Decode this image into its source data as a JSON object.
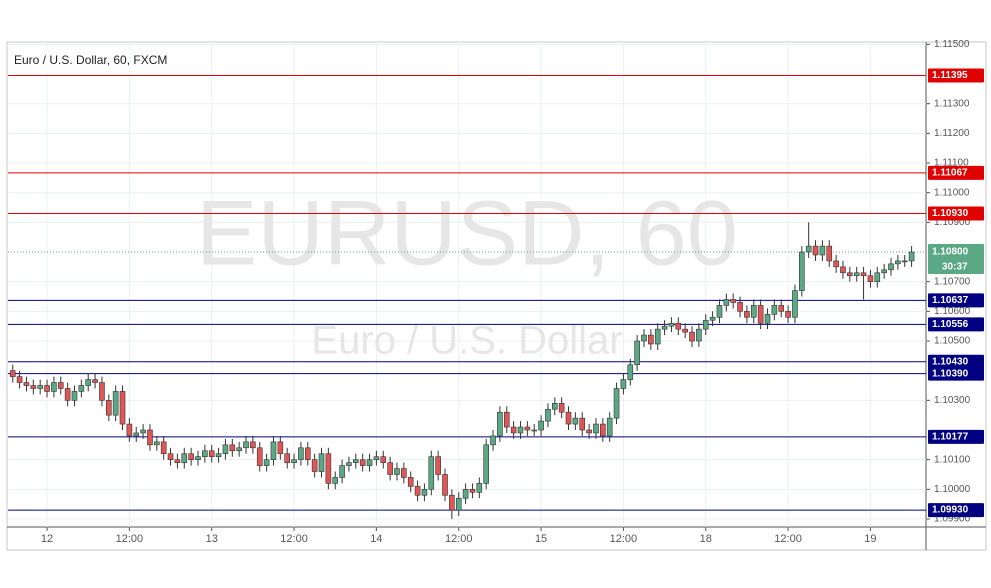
{
  "chart_data": {
    "type": "candlestick",
    "title": "Euro / U.S. Dollar, 60, FXCM",
    "watermark": "EURUSD, 60",
    "watermark_subtitle": "Euro / U.S. Dollar",
    "x": [
      -5,
      -4,
      -3,
      -2,
      -1,
      0,
      1,
      2,
      3,
      4,
      5,
      6,
      7,
      8,
      9,
      10,
      11,
      12,
      13,
      14,
      15,
      16,
      17,
      18,
      19,
      20,
      21,
      22,
      23,
      24,
      25,
      26,
      27,
      28,
      29,
      30,
      31,
      32,
      33,
      34,
      35,
      36,
      37,
      38,
      39,
      40,
      41,
      42,
      43,
      44,
      45,
      46,
      47,
      48,
      49,
      50,
      51,
      52,
      53,
      54,
      55,
      56,
      57,
      58,
      59,
      60,
      61,
      62,
      63,
      64,
      65,
      66,
      67,
      68,
      69,
      70,
      71,
      72,
      73,
      74,
      75,
      76,
      77,
      78,
      79,
      80,
      81,
      82,
      83,
      84,
      85,
      86,
      87,
      88,
      89,
      90,
      91,
      92,
      93,
      94,
      95,
      96,
      97,
      98,
      99,
      100,
      101,
      102,
      103,
      104,
      105,
      106,
      107,
      108,
      109,
      110,
      111,
      112,
      113,
      114,
      115,
      116,
      117,
      118,
      119,
      120,
      121,
      122,
      123,
      124,
      125,
      126
    ],
    "open": [
      1.104,
      1.1038,
      1.1036,
      1.1035,
      1.1034,
      1.1035,
      1.1033,
      1.1036,
      1.1034,
      1.103,
      1.1033,
      1.1035,
      1.1037,
      1.1036,
      1.103,
      1.1025,
      1.1033,
      1.1022,
      1.1018,
      1.1019,
      1.102,
      1.1015,
      1.1016,
      1.1012,
      1.101,
      1.1009,
      1.1012,
      1.101,
      1.1011,
      1.1013,
      1.1011,
      1.1012,
      1.1015,
      1.1013,
      1.1014,
      1.1016,
      1.1014,
      1.1008,
      1.101,
      1.1016,
      1.1012,
      1.1009,
      1.101,
      1.1014,
      1.101,
      1.1006,
      1.1012,
      1.1002,
      1.1004,
      1.1008,
      1.1009,
      1.101,
      1.1008,
      1.101,
      1.1011,
      1.1009,
      1.1005,
      1.1007,
      1.1004,
      1.1001,
      1.0998,
      1.1,
      1.1011,
      1.1005,
      1.0998,
      1.0993,
      1.0997,
      1.1,
      1.0999,
      1.1002,
      1.1015,
      1.1018,
      1.1026,
      1.1021,
      1.1019,
      1.1021,
      1.102,
      1.102,
      1.1023,
      1.1027,
      1.1029,
      1.1026,
      1.1022,
      1.1024,
      1.102,
      1.1019,
      1.1022,
      1.1018,
      1.1024,
      1.1034,
      1.1037,
      1.1042,
      1.105,
      1.1052,
      1.1049,
      1.1054,
      1.1055,
      1.1056,
      1.1054,
      1.1053,
      1.105,
      1.1054,
      1.1057,
      1.1058,
      1.1062,
      1.1064,
      1.1063,
      1.106,
      1.1058,
      1.1062,
      1.1056,
      1.1059,
      1.1062,
      1.106,
      1.1058,
      1.1067,
      1.108,
      1.1082,
      1.1079,
      1.1082,
      1.1077,
      1.1075,
      1.1073,
      1.1072,
      1.1073,
      1.1072,
      1.107,
      1.1073,
      1.1074,
      1.1076,
      1.1077,
      1.1077
    ],
    "high": [
      1.1042,
      1.104,
      1.1038,
      1.1037,
      1.1037,
      1.1037,
      1.1038,
      1.1038,
      1.1036,
      1.1035,
      1.1037,
      1.1039,
      1.1039,
      1.1038,
      1.1032,
      1.1035,
      1.1035,
      1.1024,
      1.1021,
      1.1022,
      1.1022,
      1.1018,
      1.1018,
      1.1014,
      1.1012,
      1.1014,
      1.1014,
      1.1013,
      1.1015,
      1.1015,
      1.1014,
      1.1017,
      1.1017,
      1.1016,
      1.1018,
      1.1018,
      1.1016,
      1.1012,
      1.1018,
      1.1018,
      1.1014,
      1.1012,
      1.1016,
      1.1016,
      1.1012,
      1.1014,
      1.1014,
      1.1006,
      1.101,
      1.1011,
      1.1012,
      1.1012,
      1.1012,
      1.1013,
      1.1013,
      1.1011,
      1.1009,
      1.1009,
      1.1006,
      1.1003,
      1.1002,
      1.1013,
      1.1013,
      1.1007,
      1.1,
      1.0999,
      1.1002,
      1.1002,
      1.1004,
      1.1017,
      1.102,
      1.1028,
      1.1028,
      1.1023,
      1.1023,
      1.1023,
      1.1022,
      1.1025,
      1.1029,
      1.1031,
      1.1031,
      1.1028,
      1.1026,
      1.1026,
      1.1022,
      1.1024,
      1.1024,
      1.1026,
      1.1036,
      1.1039,
      1.1044,
      1.1052,
      1.1054,
      1.1054,
      1.1056,
      1.1057,
      1.1058,
      1.1058,
      1.1056,
      1.1055,
      1.1056,
      1.1059,
      1.106,
      1.1064,
      1.1066,
      1.1066,
      1.1065,
      1.1062,
      1.1064,
      1.1064,
      1.1061,
      1.1064,
      1.1064,
      1.1062,
      1.1069,
      1.1082,
      1.109,
      1.1084,
      1.1084,
      1.1084,
      1.1079,
      1.1077,
      1.1075,
      1.1075,
      1.1075,
      1.1074,
      1.1075,
      1.1076,
      1.1078,
      1.1079,
      1.1079,
      1.1082
    ],
    "low": [
      1.1036,
      1.1034,
      1.1033,
      1.1032,
      1.1032,
      1.1031,
      1.1031,
      1.1032,
      1.1028,
      1.1028,
      1.1031,
      1.1033,
      1.1034,
      1.1028,
      1.1023,
      1.1023,
      1.102,
      1.1016,
      1.1016,
      1.1017,
      1.1013,
      1.1013,
      1.101,
      1.1008,
      1.1007,
      1.1007,
      1.1008,
      1.1008,
      1.1009,
      1.1009,
      1.1009,
      1.101,
      1.1011,
      1.1011,
      1.1012,
      1.1012,
      1.1006,
      1.1006,
      1.1008,
      1.101,
      1.1007,
      1.1007,
      1.1008,
      1.1008,
      1.1004,
      1.1004,
      1.1,
      1.1,
      1.1002,
      1.1006,
      1.1007,
      1.1006,
      1.1006,
      1.1008,
      1.1007,
      1.1003,
      1.1003,
      1.1002,
      1.0999,
      1.0996,
      1.0996,
      1.0998,
      1.1003,
      1.0996,
      1.099,
      1.0991,
      1.0995,
      1.0997,
      1.0997,
      1.1,
      1.1013,
      1.1016,
      1.1019,
      1.1017,
      1.1017,
      1.1018,
      1.1018,
      1.1018,
      1.1021,
      1.1025,
      1.1024,
      1.102,
      1.102,
      1.1018,
      1.1017,
      1.1017,
      1.1016,
      1.1016,
      1.1022,
      1.1032,
      1.1035,
      1.104,
      1.1048,
      1.1047,
      1.1047,
      1.1052,
      1.1053,
      1.1052,
      1.1051,
      1.1048,
      1.1048,
      1.1052,
      1.1055,
      1.1056,
      1.106,
      1.1061,
      1.1058,
      1.1056,
      1.1056,
      1.1054,
      1.1054,
      1.1057,
      1.1058,
      1.1056,
      1.1056,
      1.1065,
      1.1078,
      1.1077,
      1.1077,
      1.1075,
      1.1073,
      1.1071,
      1.107,
      1.107,
      1.1064,
      1.1068,
      1.1068,
      1.1071,
      1.1072,
      1.1074,
      1.1075,
      1.1075
    ],
    "close": [
      1.1038,
      1.1036,
      1.1035,
      1.1034,
      1.1035,
      1.1033,
      1.1036,
      1.1034,
      1.103,
      1.1033,
      1.1035,
      1.1037,
      1.1036,
      1.103,
      1.1025,
      1.1033,
      1.1022,
      1.1018,
      1.1019,
      1.102,
      1.1015,
      1.1016,
      1.1012,
      1.101,
      1.1009,
      1.1012,
      1.101,
      1.1011,
      1.1013,
      1.1011,
      1.1012,
      1.1015,
      1.1013,
      1.1014,
      1.1016,
      1.1014,
      1.1008,
      1.101,
      1.1016,
      1.1012,
      1.1009,
      1.101,
      1.1014,
      1.101,
      1.1006,
      1.1012,
      1.1002,
      1.1004,
      1.1008,
      1.1009,
      1.101,
      1.1008,
      1.101,
      1.1011,
      1.1009,
      1.1005,
      1.1007,
      1.1004,
      1.1001,
      1.0998,
      1.1,
      1.1011,
      1.1005,
      1.0998,
      1.0993,
      1.0997,
      1.1,
      1.0999,
      1.1002,
      1.1015,
      1.1018,
      1.1026,
      1.1021,
      1.1019,
      1.1021,
      1.102,
      1.102,
      1.1023,
      1.1027,
      1.1029,
      1.1026,
      1.1022,
      1.1024,
      1.102,
      1.1019,
      1.1022,
      1.1018,
      1.1024,
      1.1034,
      1.1037,
      1.1042,
      1.105,
      1.1052,
      1.1049,
      1.1054,
      1.1055,
      1.1056,
      1.1054,
      1.1053,
      1.105,
      1.1054,
      1.1057,
      1.1058,
      1.1062,
      1.1064,
      1.1063,
      1.106,
      1.1058,
      1.1062,
      1.1056,
      1.1059,
      1.1062,
      1.106,
      1.1058,
      1.1067,
      1.108,
      1.1082,
      1.1079,
      1.1082,
      1.1077,
      1.1075,
      1.1073,
      1.1072,
      1.1073,
      1.1072,
      1.107,
      1.1073,
      1.1074,
      1.1076,
      1.1077,
      1.1077,
      1.108
    ],
    "up_color": "#5aa884",
    "down_color": "#e05656",
    "xlim": [
      -5.69,
      128.1
    ],
    "ylim": [
      1.09873,
      1.11508
    ],
    "xticks": [
      {
        "value": 0,
        "label": "12"
      },
      {
        "value": 12,
        "label": "12:00"
      },
      {
        "value": 24,
        "label": "13"
      },
      {
        "value": 36,
        "label": "12:00"
      },
      {
        "value": 48,
        "label": "14"
      },
      {
        "value": 60,
        "label": "12:00"
      },
      {
        "value": 72,
        "label": "15"
      },
      {
        "value": 84,
        "label": "12:00"
      },
      {
        "value": 96,
        "label": "18"
      },
      {
        "value": 108,
        "label": "12:00"
      },
      {
        "value": 120,
        "label": "19"
      }
    ],
    "yticks": [
      {
        "value": 1.115,
        "label": "1.11500"
      },
      {
        "value": 1.113,
        "label": "1.11300"
      },
      {
        "value": 1.112,
        "label": "1.11200"
      },
      {
        "value": 1.111,
        "label": "1.11100"
      },
      {
        "value": 1.11,
        "label": "1.11000"
      },
      {
        "value": 1.109,
        "label": "1.10900"
      },
      {
        "value": 1.107,
        "label": "1.10700"
      },
      {
        "value": 1.106,
        "label": "1.10600"
      },
      {
        "value": 1.105,
        "label": "1.10500"
      },
      {
        "value": 1.103,
        "label": "1.10300"
      },
      {
        "value": 1.101,
        "label": "1.10100"
      },
      {
        "value": 1.1,
        "label": "1.10000"
      },
      {
        "value": 1.099,
        "label": "1.09900"
      }
    ],
    "grid": true,
    "levels": [
      {
        "value": 1.11395,
        "label": "1.11395",
        "color": "#e00000"
      },
      {
        "value": 1.11067,
        "label": "1.11067",
        "color": "#e00000"
      },
      {
        "value": 1.1093,
        "label": "1.10930",
        "color": "#e00000"
      },
      {
        "value": 1.10637,
        "label": "1.10637",
        "color": "#000080"
      },
      {
        "value": 1.10556,
        "label": "1.10556",
        "color": "#000080"
      },
      {
        "value": 1.1043,
        "label": "1.10430",
        "color": "#000080"
      },
      {
        "value": 1.1039,
        "label": "1.10390",
        "color": "#000080"
      },
      {
        "value": 1.10177,
        "label": "1.10177",
        "color": "#000080"
      },
      {
        "value": 1.0993,
        "label": "1.09930",
        "color": "#000080"
      }
    ],
    "last_price": {
      "value": 1.108,
      "label": "1.10800",
      "color": "#5aa884"
    },
    "countdown": "30:37"
  }
}
